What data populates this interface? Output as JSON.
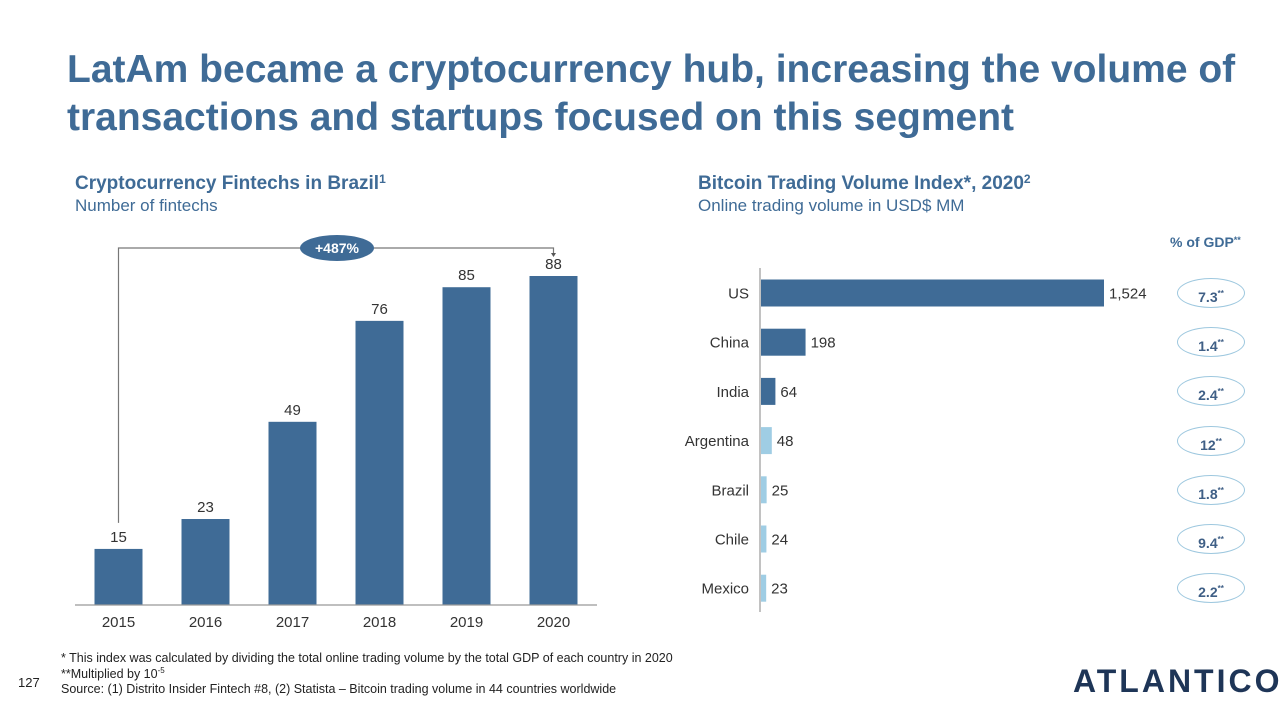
{
  "page": {
    "title": "LatAm became a cryptocurrency hub, increasing the volume of transactions and startups focused on this segment",
    "page_number": "127",
    "logo": "ATLANTICO",
    "footnotes": {
      "line1": "* This index was calculated by dividing the total online trading volume by the total GDP of each country in 2020",
      "line2_prefix": "**Multiplied by 10",
      "line2_exp": "-5",
      "source": "Source: (1) Distrito Insider Fintech #8, (2) Statista – Bitcoin trading volume in 44 countries worldwide"
    },
    "colors": {
      "title": "#3f6b96",
      "bar_dark": "#3f6b96",
      "bar_light": "#9fcde4",
      "pill_border": "#9ec8df",
      "logo": "#1e3557"
    }
  },
  "chart_data": [
    {
      "type": "bar",
      "title": "Cryptocurrency Fintechs in Brazil",
      "title_sup": "1",
      "subtitle": "Number of fintechs",
      "categories": [
        "2015",
        "2016",
        "2017",
        "2018",
        "2019",
        "2020"
      ],
      "values": [
        15,
        23,
        49,
        76,
        85,
        88
      ],
      "xlabel": "",
      "ylabel": "",
      "ylim": [
        0,
        88
      ],
      "grid": false,
      "annotation": {
        "label": "+487%",
        "from": "2015",
        "to": "2020"
      }
    },
    {
      "type": "bar",
      "orientation": "horizontal",
      "title": "Bitcoin Trading Volume Index*, 2020",
      "title_sup": "2",
      "subtitle": "Online trading volume in USD$ MM",
      "categories": [
        "US",
        "China",
        "India",
        "Argentina",
        "Brazil",
        "Chile",
        "Mexico"
      ],
      "values": [
        1524,
        198,
        64,
        48,
        25,
        24,
        23
      ],
      "value_labels": [
        "1,524",
        "198",
        "64",
        "48",
        "25",
        "24",
        "23"
      ],
      "highlight": [
        "dark",
        "dark",
        "dark",
        "light",
        "light",
        "light",
        "light"
      ],
      "xlim": [
        0,
        1524
      ],
      "grid": false,
      "side_column": {
        "header": "% of GDP",
        "header_sup": "**",
        "values": [
          "7.3",
          "1.4",
          "2.4",
          "12",
          "1.8",
          "9.4",
          "2.2"
        ],
        "value_sup": "**"
      }
    }
  ]
}
